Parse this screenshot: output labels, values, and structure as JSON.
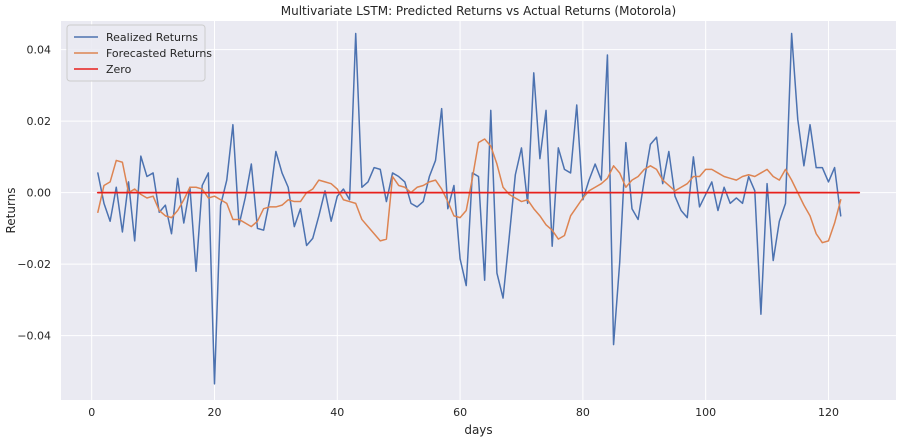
{
  "chart_data": {
    "type": "line",
    "title": "Multivariate LSTM: Predicted Returns vs Actual Returns (Motorola)",
    "xlabel": "days",
    "ylabel": "Returns",
    "xlim": [
      -5,
      131
    ],
    "ylim": [
      -0.058,
      0.048
    ],
    "xticks": [
      0,
      20,
      40,
      60,
      80,
      100,
      120
    ],
    "yticks": [
      -0.04,
      -0.02,
      0.0,
      0.02,
      0.04
    ],
    "ytick_labels": [
      "−0.04",
      "−0.02",
      "0.00",
      "0.02",
      "0.04"
    ],
    "grid": true,
    "legend_position": "top-left",
    "background": "#eaeaf2",
    "series": [
      {
        "name": "Realized Returns",
        "color": "#4c72b0",
        "x": [
          1,
          2,
          3,
          4,
          5,
          6,
          7,
          8,
          9,
          10,
          11,
          12,
          13,
          14,
          15,
          16,
          17,
          18,
          19,
          20,
          21,
          22,
          23,
          24,
          25,
          26,
          27,
          28,
          29,
          30,
          31,
          32,
          33,
          34,
          35,
          36,
          37,
          38,
          39,
          40,
          41,
          42,
          43,
          44,
          45,
          46,
          47,
          48,
          49,
          50,
          51,
          52,
          53,
          54,
          55,
          56,
          57,
          58,
          59,
          60,
          61,
          62,
          63,
          64,
          65,
          66,
          67,
          68,
          69,
          70,
          71,
          72,
          73,
          74,
          75,
          76,
          77,
          78,
          79,
          80,
          81,
          82,
          83,
          84,
          85,
          86,
          87,
          88,
          89,
          90,
          91,
          92,
          93,
          94,
          95,
          96,
          97,
          98,
          99,
          100,
          101,
          102,
          103,
          104,
          105,
          106,
          107,
          108,
          109,
          110,
          111,
          112,
          113,
          114,
          115,
          116,
          117,
          118,
          119,
          120,
          121,
          122
        ],
        "y": [
          0.0055,
          -0.003,
          -0.008,
          0.0015,
          -0.011,
          0.003,
          -0.0135,
          0.0102,
          0.0045,
          0.0055,
          -0.0055,
          -0.0035,
          -0.0115,
          0.004,
          -0.0085,
          0.0015,
          -0.022,
          0.002,
          0.0055,
          -0.0535,
          -0.0035,
          0.0035,
          0.019,
          -0.009,
          -0.0015,
          0.008,
          -0.01,
          -0.0105,
          -0.002,
          0.0115,
          0.0055,
          0.0015,
          -0.0095,
          -0.0045,
          -0.0148,
          -0.0128,
          -0.0065,
          0.0005,
          -0.008,
          -0.001,
          0.001,
          -0.002,
          0.0445,
          0.0015,
          0.003,
          0.007,
          0.0065,
          -0.0025,
          0.0055,
          0.0045,
          0.003,
          -0.003,
          -0.004,
          -0.0025,
          0.0045,
          0.009,
          0.0235,
          -0.0045,
          0.002,
          -0.0185,
          -0.026,
          0.0055,
          0.0045,
          -0.0245,
          0.023,
          -0.0225,
          -0.0295,
          -0.0125,
          0.005,
          0.0125,
          -0.003,
          0.0335,
          0.0095,
          0.023,
          -0.015,
          0.0125,
          0.0065,
          0.0055,
          0.0245,
          -0.002,
          0.0035,
          0.008,
          0.0035,
          0.0385,
          -0.0425,
          -0.0195,
          0.014,
          -0.0045,
          -0.0075,
          0.0035,
          0.0135,
          0.0155,
          0.0025,
          0.0115,
          -0.001,
          -0.005,
          -0.007,
          0.01,
          -0.004,
          -0.0005,
          0.003,
          -0.005,
          0.0015,
          -0.003,
          -0.0015,
          -0.003,
          0.0045,
          0.0005,
          -0.034,
          0.0025,
          -0.019,
          -0.008,
          -0.003,
          0.0445,
          0.0205,
          0.0075,
          0.019,
          0.007,
          0.007,
          0.003,
          0.007,
          -0.0065
        ]
      },
      {
        "name": "Forecasted Returns",
        "color": "#dd8452",
        "x": [
          1,
          2,
          3,
          4,
          5,
          6,
          7,
          8,
          9,
          10,
          11,
          12,
          13,
          14,
          15,
          16,
          17,
          18,
          19,
          20,
          21,
          22,
          23,
          24,
          25,
          26,
          27,
          28,
          29,
          30,
          31,
          32,
          33,
          34,
          35,
          36,
          37,
          38,
          39,
          40,
          41,
          42,
          43,
          44,
          45,
          46,
          47,
          48,
          49,
          50,
          51,
          52,
          53,
          54,
          55,
          56,
          57,
          58,
          59,
          60,
          61,
          62,
          63,
          64,
          65,
          66,
          67,
          68,
          69,
          70,
          71,
          72,
          73,
          74,
          75,
          76,
          77,
          78,
          79,
          80,
          81,
          82,
          83,
          84,
          85,
          86,
          87,
          88,
          89,
          90,
          91,
          92,
          93,
          94,
          95,
          96,
          97,
          98,
          99,
          100,
          101,
          102,
          103,
          104,
          105,
          106,
          107,
          108,
          109,
          110,
          111,
          112,
          113,
          114,
          115,
          116,
          117,
          118,
          119,
          120,
          121,
          122
        ],
        "y": [
          -0.0055,
          0.002,
          0.003,
          0.009,
          0.0085,
          0.0,
          0.001,
          -0.0005,
          -0.0015,
          -0.001,
          -0.005,
          -0.0065,
          -0.007,
          -0.005,
          -0.002,
          0.0015,
          0.0015,
          0.001,
          -0.0015,
          -0.001,
          -0.002,
          -0.003,
          -0.0075,
          -0.0075,
          -0.0085,
          -0.0095,
          -0.008,
          -0.0045,
          -0.004,
          -0.004,
          -0.0035,
          -0.002,
          -0.0025,
          -0.0025,
          0.0,
          0.001,
          0.0035,
          0.003,
          0.0025,
          0.001,
          -0.002,
          -0.0025,
          -0.003,
          -0.0075,
          -0.0095,
          -0.0115,
          -0.0135,
          -0.013,
          0.0045,
          0.002,
          0.0015,
          0.0,
          0.0015,
          0.002,
          0.003,
          0.0035,
          0.001,
          -0.0025,
          -0.0065,
          -0.007,
          -0.005,
          0.004,
          0.014,
          0.015,
          0.013,
          0.008,
          0.0015,
          -0.0005,
          -0.0015,
          -0.0025,
          -0.002,
          -0.0045,
          -0.0065,
          -0.009,
          -0.0105,
          -0.013,
          -0.012,
          -0.0065,
          -0.004,
          -0.0015,
          0.0005,
          0.0015,
          0.0025,
          0.004,
          0.0075,
          0.0055,
          0.0015,
          0.0035,
          0.0045,
          0.0065,
          0.0075,
          0.0065,
          0.0035,
          0.002,
          0.0005,
          0.0015,
          0.0025,
          0.0045,
          0.0045,
          0.0065,
          0.0065,
          0.0055,
          0.0045,
          0.004,
          0.0035,
          0.0045,
          0.005,
          0.0045,
          0.0055,
          0.0065,
          0.0045,
          0.0035,
          0.0065,
          0.0035,
          0.0,
          -0.0035,
          -0.0065,
          -0.0115,
          -0.014,
          -0.0135,
          -0.0085,
          -0.002
        ]
      },
      {
        "name": "Zero",
        "color": "#e8201c",
        "x": [
          1,
          125
        ],
        "y": [
          0.0,
          0.0
        ]
      }
    ]
  }
}
